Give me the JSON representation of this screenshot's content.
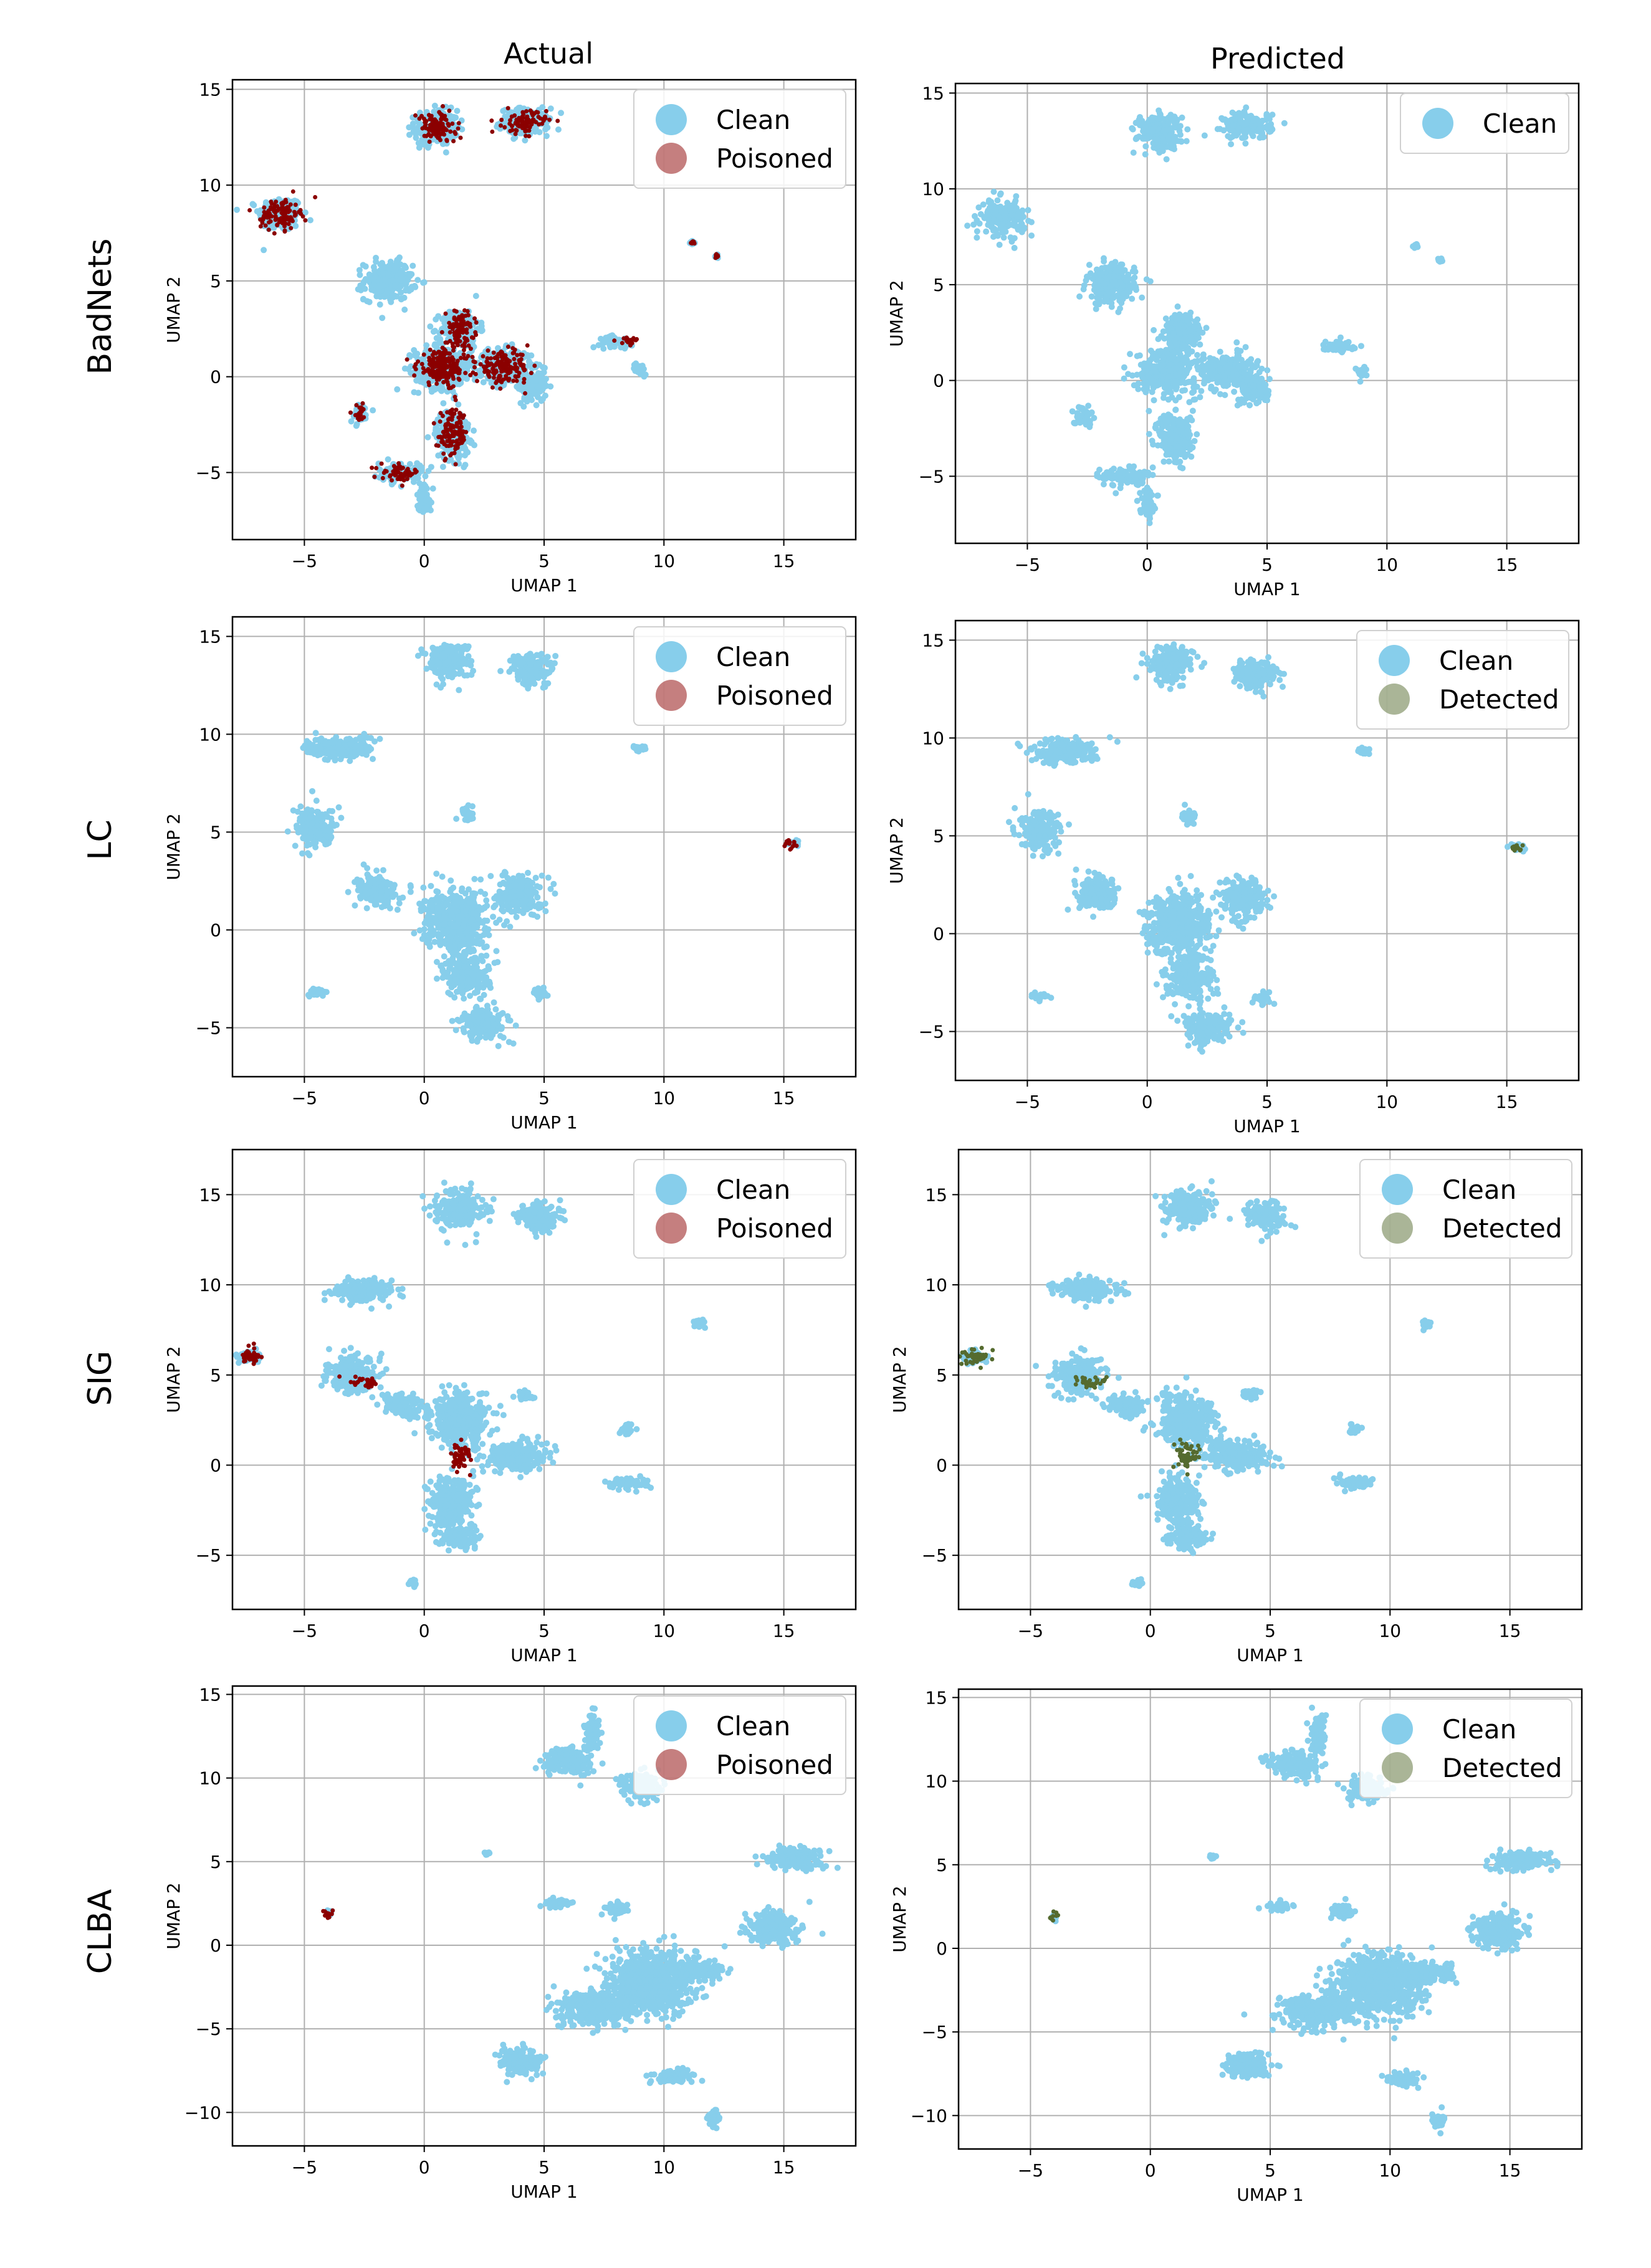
{
  "figure": {
    "col_titles": [
      "Actual",
      "Predicted"
    ],
    "row_labels": [
      "BadNets",
      "LC",
      "SIG",
      "CLBA"
    ]
  },
  "colors": {
    "clean": "#87ceeb",
    "poisoned": "#8b0000",
    "detected": "#556b2f",
    "grid": "#b0b0b0",
    "axis": "#000000"
  },
  "chart_data": [
    {
      "type": "scatter",
      "row": "BadNets",
      "col": "Actual",
      "xlabel": "UMAP 1",
      "ylabel": "UMAP 2",
      "xlim": [
        -8,
        18
      ],
      "ylim": [
        -8.5,
        15.5
      ],
      "xticks": [
        -5,
        0,
        5,
        10,
        15
      ],
      "yticks": [
        -5,
        0,
        5,
        10,
        15
      ],
      "legend": [
        "Clean",
        "Poisoned"
      ],
      "legend_loc": "top-right",
      "clean_clusters": [
        [
          -6,
          8.5,
          0.9,
          0.9
        ],
        [
          0.5,
          13,
          0.9,
          0.9
        ],
        [
          4.2,
          13.3,
          1,
          0.7
        ],
        [
          -1.5,
          5,
          1,
          1
        ],
        [
          1.5,
          2.5,
          0.8,
          1
        ],
        [
          0.8,
          0.5,
          1.2,
          1.1
        ],
        [
          3.3,
          0.5,
          1.2,
          0.9
        ],
        [
          4.5,
          -0.5,
          0.6,
          0.8
        ],
        [
          1.2,
          -3,
          0.7,
          1.3
        ],
        [
          -1,
          -5,
          0.9,
          0.5
        ],
        [
          0,
          -6.3,
          0.3,
          0.8
        ],
        [
          -2.7,
          -1.9,
          0.4,
          0.5
        ],
        [
          8,
          1.8,
          0.7,
          0.3
        ],
        [
          9,
          0.4,
          0.3,
          0.3
        ],
        [
          11.2,
          7,
          0.1,
          0.1
        ],
        [
          12.2,
          6.3,
          0.1,
          0.1
        ]
      ],
      "marked_clusters": [
        [
          -6,
          8.5,
          0.8,
          0.8
        ],
        [
          0.5,
          13,
          0.8,
          0.8
        ],
        [
          4.2,
          13.3,
          0.9,
          0.6
        ],
        [
          1.5,
          2.5,
          0.6,
          0.9
        ],
        [
          0.8,
          0.5,
          1.1,
          1
        ],
        [
          3.3,
          0.5,
          1.1,
          0.8
        ],
        [
          1.2,
          -3,
          0.6,
          1.2
        ],
        [
          -1,
          -5,
          0.8,
          0.4
        ],
        [
          -2.7,
          -1.9,
          0.3,
          0.4
        ],
        [
          8.5,
          1.9,
          0.5,
          0.2
        ],
        [
          11.2,
          7,
          0.1,
          0.1
        ],
        [
          12.2,
          6.3,
          0.1,
          0.1
        ]
      ],
      "marked_series": "Poisoned"
    },
    {
      "type": "scatter",
      "row": "BadNets",
      "col": "Predicted",
      "xlabel": "UMAP 1",
      "ylabel": "UMAP 2",
      "xlim": [
        -8,
        18
      ],
      "ylim": [
        -8.5,
        15.5
      ],
      "xticks": [
        -5,
        0,
        5,
        10,
        15
      ],
      "yticks": [
        -5,
        0,
        5,
        10,
        15
      ],
      "legend": [
        "Clean"
      ],
      "legend_loc": "top-right",
      "clean_clusters": [
        [
          -6,
          8.5,
          0.9,
          0.9
        ],
        [
          0.5,
          13,
          0.9,
          0.9
        ],
        [
          4.2,
          13.3,
          1,
          0.7
        ],
        [
          -1.5,
          5,
          1,
          1
        ],
        [
          1.5,
          2.5,
          0.8,
          1
        ],
        [
          0.8,
          0.5,
          1.2,
          1.1
        ],
        [
          3.3,
          0.5,
          1.2,
          0.9
        ],
        [
          4.5,
          -0.5,
          0.6,
          0.8
        ],
        [
          1.2,
          -3,
          0.7,
          1.3
        ],
        [
          -1,
          -5,
          0.9,
          0.5
        ],
        [
          0,
          -6.3,
          0.3,
          0.8
        ],
        [
          -2.7,
          -1.9,
          0.4,
          0.5
        ],
        [
          8,
          1.8,
          0.7,
          0.3
        ],
        [
          9,
          0.4,
          0.3,
          0.3
        ],
        [
          11.2,
          7,
          0.1,
          0.1
        ],
        [
          12.2,
          6.3,
          0.1,
          0.1
        ]
      ],
      "marked_clusters": [],
      "marked_series": ""
    },
    {
      "type": "scatter",
      "row": "LC",
      "col": "Actual",
      "xlabel": "UMAP 1",
      "ylabel": "UMAP 2",
      "xlim": [
        -8,
        18
      ],
      "ylim": [
        -7.5,
        16
      ],
      "xticks": [
        -5,
        0,
        5,
        10,
        15
      ],
      "yticks": [
        -5,
        0,
        5,
        10,
        15
      ],
      "legend": [
        "Clean",
        "Poisoned"
      ],
      "legend_loc": "top-right",
      "clean_clusters": [
        [
          1,
          13.8,
          0.9,
          0.9
        ],
        [
          4.5,
          13.3,
          0.9,
          0.8
        ],
        [
          -3.5,
          9.3,
          1.4,
          0.6
        ],
        [
          -4.5,
          5.2,
          0.8,
          1
        ],
        [
          -2,
          2,
          0.9,
          0.8
        ],
        [
          1.3,
          0.5,
          1.3,
          1.5
        ],
        [
          4,
          1.8,
          0.9,
          1
        ],
        [
          1.8,
          -2.2,
          0.9,
          1.2
        ],
        [
          2.5,
          -4.8,
          1,
          0.8
        ],
        [
          4.8,
          -3.3,
          0.4,
          0.3
        ],
        [
          -4.5,
          -3.2,
          0.5,
          0.2
        ],
        [
          1.8,
          6,
          0.3,
          0.4
        ],
        [
          9,
          9.3,
          0.3,
          0.2
        ],
        [
          15.4,
          4.4,
          0.3,
          0.2
        ]
      ],
      "marked_clusters": [
        [
          15.4,
          4.4,
          0.35,
          0.25
        ]
      ],
      "marked_series": "Poisoned"
    },
    {
      "type": "scatter",
      "row": "LC",
      "col": "Predicted",
      "xlabel": "UMAP 1",
      "ylabel": "UMAP 2",
      "xlim": [
        -8,
        18
      ],
      "ylim": [
        -7.5,
        16
      ],
      "xticks": [
        -5,
        0,
        5,
        10,
        15
      ],
      "yticks": [
        -5,
        0,
        5,
        10,
        15
      ],
      "legend": [
        "Clean",
        "Detected"
      ],
      "legend_loc": "top-right",
      "clean_clusters": [
        [
          1,
          13.8,
          0.9,
          0.9
        ],
        [
          4.5,
          13.3,
          0.9,
          0.8
        ],
        [
          -3.5,
          9.3,
          1.4,
          0.6
        ],
        [
          -4.5,
          5.2,
          0.8,
          1
        ],
        [
          -2,
          2,
          0.9,
          0.8
        ],
        [
          1.3,
          0.5,
          1.3,
          1.5
        ],
        [
          4,
          1.8,
          0.9,
          1
        ],
        [
          1.8,
          -2.2,
          0.9,
          1.2
        ],
        [
          2.5,
          -4.8,
          1,
          0.8
        ],
        [
          4.8,
          -3.3,
          0.4,
          0.3
        ],
        [
          -4.5,
          -3.2,
          0.5,
          0.2
        ],
        [
          1.8,
          6,
          0.3,
          0.4
        ],
        [
          9,
          9.3,
          0.3,
          0.2
        ],
        [
          15.4,
          4.4,
          0.3,
          0.2
        ]
      ],
      "marked_clusters": [
        [
          15.4,
          4.4,
          0.35,
          0.25
        ]
      ],
      "marked_series": "Detected"
    },
    {
      "type": "scatter",
      "row": "SIG",
      "col": "Actual",
      "xlabel": "UMAP 1",
      "ylabel": "UMAP 2",
      "xlim": [
        -8,
        18
      ],
      "ylim": [
        -8,
        17.5
      ],
      "xticks": [
        -5,
        0,
        5,
        10,
        15
      ],
      "yticks": [
        -5,
        0,
        5,
        10,
        15
      ],
      "legend": [
        "Clean",
        "Poisoned"
      ],
      "legend_loc": "top-right",
      "clean_clusters": [
        [
          1.5,
          14.2,
          1,
          1
        ],
        [
          4.8,
          13.8,
          0.8,
          0.8
        ],
        [
          -2.5,
          9.7,
          1.3,
          0.6
        ],
        [
          -3,
          5,
          1,
          1
        ],
        [
          -1,
          3.3,
          0.8,
          0.6
        ],
        [
          1.5,
          2.5,
          1.2,
          1.4
        ],
        [
          3.7,
          0.5,
          1.3,
          0.8
        ],
        [
          1.2,
          -2,
          0.9,
          1.3
        ],
        [
          1.5,
          -4,
          0.8,
          0.6
        ],
        [
          4.2,
          3.9,
          0.4,
          0.3
        ],
        [
          8.5,
          2,
          0.3,
          0.3
        ],
        [
          8.5,
          -1,
          0.9,
          0.3
        ],
        [
          11.5,
          7.8,
          0.2,
          0.3
        ],
        [
          -7.3,
          6,
          0.5,
          0.4
        ],
        [
          -0.5,
          -6.5,
          0.2,
          0.2
        ]
      ],
      "marked_clusters": [
        [
          -7.3,
          6,
          0.55,
          0.45
        ],
        [
          -2.5,
          4.6,
          0.6,
          0.3
        ],
        [
          1.5,
          0.5,
          0.4,
          0.8
        ]
      ],
      "marked_series": "Poisoned"
    },
    {
      "type": "scatter",
      "row": "SIG",
      "col": "Predicted",
      "xlabel": "UMAP 1",
      "ylabel": "UMAP 2",
      "xlim": [
        -8,
        18
      ],
      "ylim": [
        -8,
        17.5
      ],
      "xticks": [
        -5,
        0,
        5,
        10,
        15
      ],
      "yticks": [
        -5,
        0,
        5,
        10,
        15
      ],
      "legend": [
        "Clean",
        "Detected"
      ],
      "legend_loc": "top-right",
      "clean_clusters": [
        [
          1.5,
          14.2,
          1,
          1
        ],
        [
          4.8,
          13.8,
          0.8,
          0.8
        ],
        [
          -2.5,
          9.7,
          1.3,
          0.6
        ],
        [
          -3,
          5,
          1,
          1
        ],
        [
          -1,
          3.3,
          0.8,
          0.6
        ],
        [
          1.5,
          2.5,
          1.2,
          1.4
        ],
        [
          3.7,
          0.5,
          1.3,
          0.8
        ],
        [
          1.2,
          -2,
          0.9,
          1.3
        ],
        [
          1.5,
          -4,
          0.8,
          0.6
        ],
        [
          4.2,
          3.9,
          0.4,
          0.3
        ],
        [
          8.5,
          2,
          0.3,
          0.3
        ],
        [
          8.5,
          -1,
          0.9,
          0.3
        ],
        [
          11.5,
          7.8,
          0.2,
          0.3
        ],
        [
          -7.3,
          6,
          0.5,
          0.4
        ],
        [
          -0.5,
          -6.5,
          0.2,
          0.2
        ]
      ],
      "marked_clusters": [
        [
          -7.3,
          6,
          0.55,
          0.45
        ],
        [
          -2.5,
          4.6,
          0.6,
          0.3
        ],
        [
          1.5,
          0.5,
          0.4,
          0.8
        ]
      ],
      "marked_series": "Detected"
    },
    {
      "type": "scatter",
      "row": "CLBA",
      "col": "Actual",
      "xlabel": "UMAP 1",
      "ylabel": "UMAP 2",
      "xlim": [
        -8,
        18
      ],
      "ylim": [
        -12,
        15.5
      ],
      "xticks": [
        -5,
        0,
        5,
        10,
        15
      ],
      "yticks": [
        -10,
        -5,
        0,
        5,
        10,
        15
      ],
      "legend": [
        "Clean",
        "Poisoned"
      ],
      "legend_loc": "top-right",
      "clean_clusters": [
        [
          6,
          11,
          1,
          0.8
        ],
        [
          9,
          9.5,
          0.8,
          0.8
        ],
        [
          7,
          12.8,
          0.3,
          1.2
        ],
        [
          9.5,
          -2.2,
          1.8,
          1.8
        ],
        [
          7,
          -3.8,
          1.5,
          1
        ],
        [
          11.5,
          -1.5,
          1,
          0.6
        ],
        [
          15.5,
          5.2,
          1.2,
          0.6
        ],
        [
          14.5,
          1,
          1,
          1
        ],
        [
          5.5,
          2.5,
          0.6,
          0.3
        ],
        [
          8,
          2.2,
          0.5,
          0.4
        ],
        [
          4,
          -7,
          0.9,
          0.8
        ],
        [
          10.5,
          -7.8,
          0.8,
          0.4
        ],
        [
          12,
          -10.3,
          0.3,
          0.5
        ],
        [
          2.6,
          5.5,
          0.1,
          0.1
        ],
        [
          -4,
          1.9,
          0.15,
          0.25
        ]
      ],
      "marked_clusters": [
        [
          -4,
          1.9,
          0.2,
          0.25
        ]
      ],
      "marked_series": "Poisoned"
    },
    {
      "type": "scatter",
      "row": "CLBA",
      "col": "Predicted",
      "xlabel": "UMAP 1",
      "ylabel": "UMAP 2",
      "xlim": [
        -8,
        18
      ],
      "ylim": [
        -12,
        15.5
      ],
      "xticks": [
        -5,
        0,
        5,
        10,
        15
      ],
      "yticks": [
        -10,
        -5,
        0,
        5,
        10,
        15
      ],
      "legend": [
        "Clean",
        "Detected"
      ],
      "legend_loc": "top-right",
      "clean_clusters": [
        [
          6,
          11,
          1,
          0.8
        ],
        [
          9,
          9.5,
          0.8,
          0.8
        ],
        [
          7,
          12.8,
          0.3,
          1.2
        ],
        [
          9.5,
          -2.2,
          1.8,
          1.8
        ],
        [
          7,
          -3.8,
          1.5,
          1
        ],
        [
          11.5,
          -1.5,
          1,
          0.6
        ],
        [
          15.5,
          5.2,
          1.2,
          0.6
        ],
        [
          14.5,
          1,
          1,
          1
        ],
        [
          5.5,
          2.5,
          0.6,
          0.3
        ],
        [
          8,
          2.2,
          0.5,
          0.4
        ],
        [
          4,
          -7,
          0.9,
          0.8
        ],
        [
          10.5,
          -7.8,
          0.8,
          0.4
        ],
        [
          12,
          -10.3,
          0.3,
          0.5
        ],
        [
          2.6,
          5.5,
          0.1,
          0.1
        ],
        [
          -4,
          1.9,
          0.15,
          0.25
        ]
      ],
      "marked_clusters": [
        [
          -4,
          1.9,
          0.2,
          0.25
        ]
      ],
      "marked_series": "Detected"
    }
  ]
}
